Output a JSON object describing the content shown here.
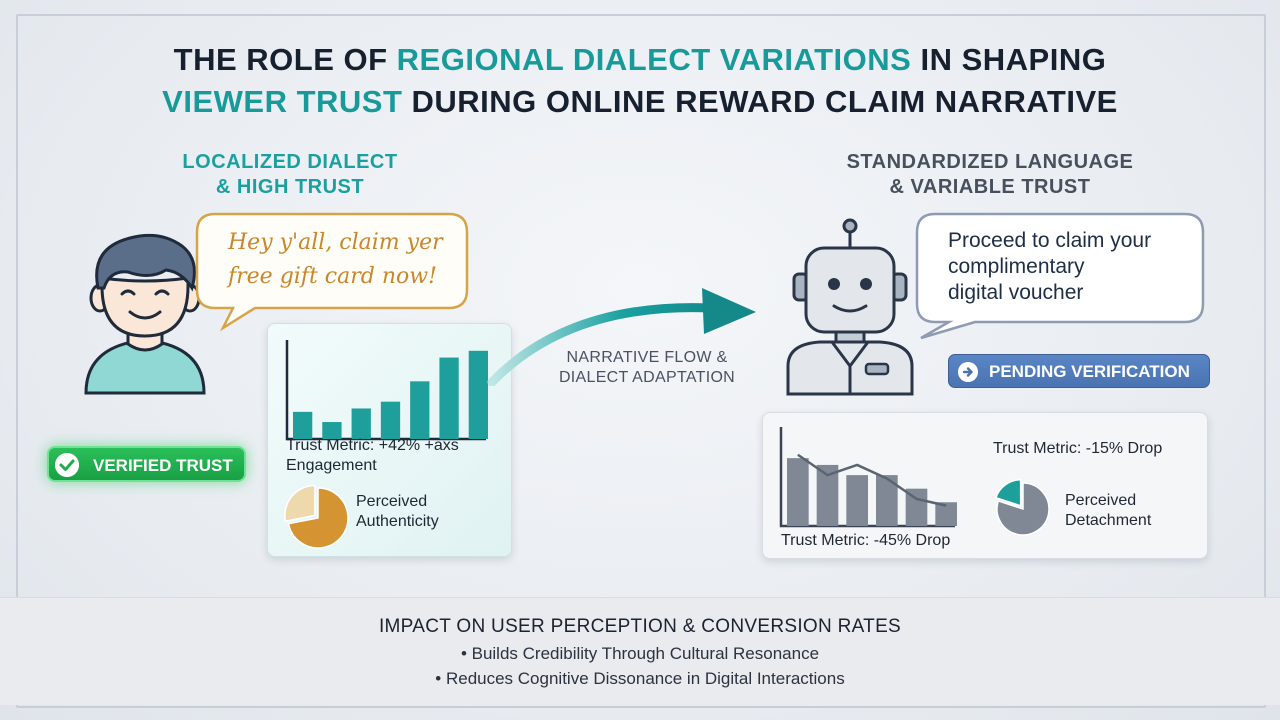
{
  "title": {
    "line1_pre": "The Role of ",
    "line1_hl": "Regional Dialect Variations",
    "line1_post": " in Shaping",
    "line2_hl": "Viewer Trust",
    "line2_post": " During Online Reward Claim Narrative"
  },
  "left_panel": {
    "heading_line1": "Localized Dialect",
    "heading_line2": "& High Trust",
    "speech_line1": "Hey y'all, claim yer",
    "speech_line2": "free gift card now!",
    "badge_label": "Verified Trust",
    "metric_line1": "Trust Metric: +42% +axs",
    "metric_line2": "Engagement",
    "pie_label_line1": "Perceived",
    "pie_label_line2": "Authenticity"
  },
  "flow": {
    "line1": "Narrative Flow &",
    "line2": "Dialect Adaptation"
  },
  "right_panel": {
    "heading_line1": "Standardized Language",
    "heading_line2": "& Variable Trust",
    "speech_line1": "Proceed to claim your",
    "speech_line2": "complimentary",
    "speech_line3": "digital voucher",
    "badge_label": "Pending Verification",
    "metric_top": "Trust Metric: -15% Drop",
    "metric_bottom": "Trust Metric: -45% Drop",
    "pie_label_line1": "Perceived",
    "pie_label_line2": "Detachment"
  },
  "footer": {
    "heading": "Impact on User Perception & Conversion Rates",
    "bullet1": "• Builds Credibility Through Cultural Resonance",
    "bullet2": "• Reduces Cognitive Dissonance in Digital Interactions"
  },
  "chart_data": [
    {
      "type": "bar",
      "values": [
        4,
        2.5,
        4.5,
        5.5,
        8.5,
        12,
        13
      ],
      "ylim": [
        0,
        14
      ],
      "color": "#1f9f9c"
    },
    {
      "type": "bar",
      "values": [
        10,
        9,
        7.5,
        7.5,
        5.5,
        3.5
      ],
      "trend_line": [
        10.5,
        7.5,
        9.0,
        7.0,
        4.0,
        3.0
      ],
      "ylim": [
        0,
        14
      ],
      "color": "#7f8894"
    },
    {
      "type": "pie",
      "values": [
        72,
        28
      ],
      "colors": [
        "#d49432",
        "#eed9ad"
      ]
    },
    {
      "type": "pie",
      "values": [
        80,
        20
      ],
      "colors": [
        "#7f8894",
        "#1f9f9c"
      ]
    }
  ],
  "colors": {
    "teal": "#189a9a",
    "gold": "#c9862a",
    "green": "#1fae4c",
    "blue": "#4a73b0",
    "dark": "#17202e"
  }
}
